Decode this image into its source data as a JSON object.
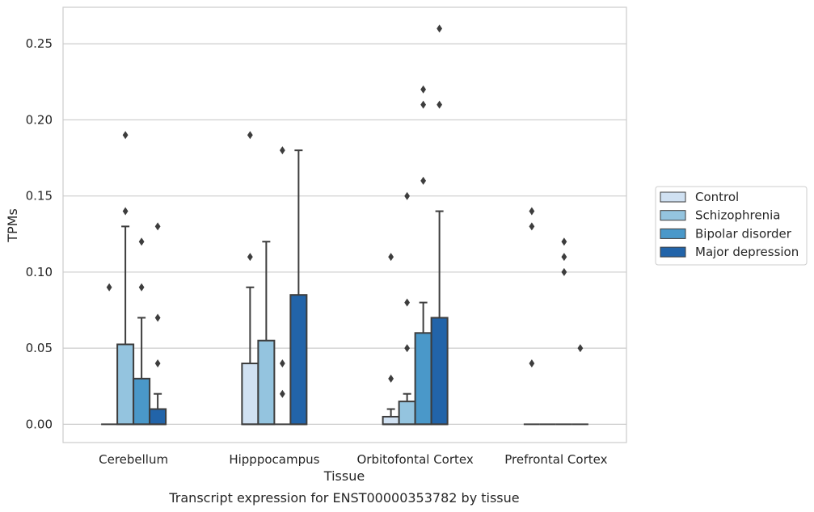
{
  "chart_data": {
    "type": "box",
    "xlabel": "Tissue",
    "ylabel": "TPMs",
    "caption": "Transcript expression for ENST00000353782 by tissue",
    "ylim": [
      -0.012,
      0.274
    ],
    "yticks": [
      "0.00",
      "0.05",
      "0.10",
      "0.15",
      "0.20",
      "0.25"
    ],
    "ytick_values": [
      0,
      0.05,
      0.1,
      0.15,
      0.2,
      0.25
    ],
    "grid": true,
    "legend_position": "right",
    "categories": [
      "Cerebellum",
      "Hipppocampus",
      "Orbitofontal Cortex",
      "Prefrontal Cortex"
    ],
    "series": [
      {
        "name": "Control",
        "color": "#d0e1f2",
        "boxes": [
          {
            "q1": 0,
            "median": 0,
            "q3": 0,
            "whisker_low": 0,
            "whisker_high": 0,
            "outliers": [
              0.09
            ]
          },
          {
            "q1": 0,
            "median": 0,
            "q3": 0.04,
            "whisker_low": 0,
            "whisker_high": 0.09,
            "outliers": [
              0.11,
              0.19
            ]
          },
          {
            "q1": 0,
            "median": 0,
            "q3": 0.005,
            "whisker_low": 0,
            "whisker_high": 0.01,
            "outliers": [
              0.03,
              0.11
            ]
          },
          {
            "q1": 0,
            "median": 0,
            "q3": 0,
            "whisker_low": 0,
            "whisker_high": 0,
            "outliers": [
              0.04,
              0.13,
              0.14
            ]
          }
        ]
      },
      {
        "name": "Schizophrenia",
        "color": "#94c4df",
        "boxes": [
          {
            "q1": 0,
            "median": 0,
            "q3": 0.0525,
            "whisker_low": 0,
            "whisker_high": 0.13,
            "outliers": [
              0.14,
              0.19
            ]
          },
          {
            "q1": 0,
            "median": 0,
            "q3": 0.055,
            "whisker_low": 0,
            "whisker_high": 0.12,
            "outliers": []
          },
          {
            "q1": 0,
            "median": 0,
            "q3": 0.015,
            "whisker_low": 0,
            "whisker_high": 0.02,
            "outliers": [
              0.05,
              0.08,
              0.15
            ]
          },
          {
            "q1": 0,
            "median": 0,
            "q3": 0,
            "whisker_low": 0,
            "whisker_high": 0,
            "outliers": []
          }
        ]
      },
      {
        "name": "Bipolar disorder",
        "color": "#4a98c9",
        "boxes": [
          {
            "q1": 0,
            "median": 0,
            "q3": 0.03,
            "whisker_low": 0,
            "whisker_high": 0.07,
            "outliers": [
              0.09,
              0.12
            ]
          },
          {
            "q1": 0,
            "median": 0,
            "q3": 0,
            "whisker_low": 0,
            "whisker_high": 0,
            "outliers": [
              0.02,
              0.04,
              0.18
            ]
          },
          {
            "q1": 0,
            "median": 0,
            "q3": 0.06,
            "whisker_low": 0,
            "whisker_high": 0.08,
            "outliers": [
              0.16,
              0.21,
              0.22
            ]
          },
          {
            "q1": 0,
            "median": 0,
            "q3": 0,
            "whisker_low": 0,
            "whisker_high": 0,
            "outliers": [
              0.1,
              0.11,
              0.12
            ]
          }
        ]
      },
      {
        "name": "Major depression",
        "color": "#2264a9",
        "boxes": [
          {
            "q1": 0,
            "median": 0,
            "q3": 0.01,
            "whisker_low": 0,
            "whisker_high": 0.02,
            "outliers": [
              0.04,
              0.07,
              0.13
            ]
          },
          {
            "q1": 0,
            "median": 0,
            "q3": 0.085,
            "whisker_low": 0,
            "whisker_high": 0.18,
            "outliers": []
          },
          {
            "q1": 0,
            "median": 0,
            "q3": 0.07,
            "whisker_low": 0,
            "whisker_high": 0.14,
            "outliers": [
              0.21,
              0.26
            ]
          },
          {
            "q1": 0,
            "median": 0,
            "q3": 0,
            "whisker_low": 0,
            "whisker_high": 0,
            "outliers": [
              0.05
            ]
          }
        ]
      }
    ]
  }
}
